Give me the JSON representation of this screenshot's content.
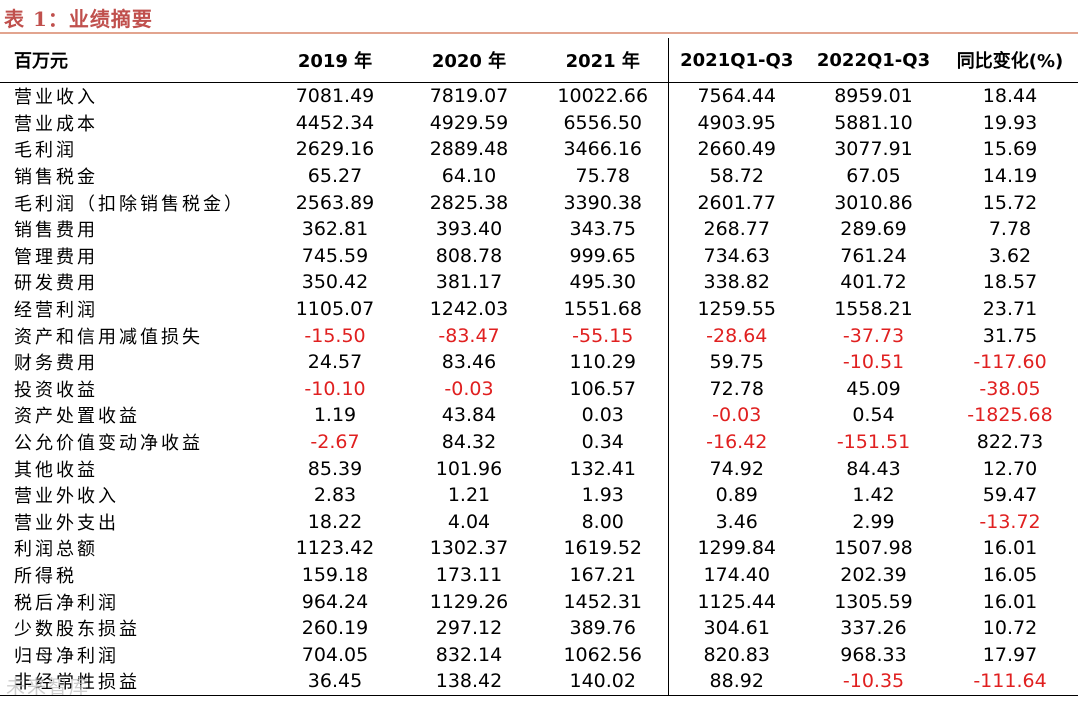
{
  "caption": "表 1：业绩摘要",
  "watermark": "未来智库",
  "colors": {
    "caption": "#c0504d",
    "negative": "#e02020"
  },
  "header": [
    "百万元",
    "2019 年",
    "2020 年",
    "2021 年",
    "2021Q1-Q3",
    "2022Q1-Q3",
    "同比变化(%)"
  ],
  "rows": [
    {
      "label": "营业收入",
      "values": [
        "7081.49",
        "7819.07",
        "10022.66",
        "7564.44",
        "8959.01",
        "18.44"
      ]
    },
    {
      "label": "营业成本",
      "values": [
        "4452.34",
        "4929.59",
        "6556.50",
        "4903.95",
        "5881.10",
        "19.93"
      ]
    },
    {
      "label": "毛利润",
      "values": [
        "2629.16",
        "2889.48",
        "3466.16",
        "2660.49",
        "3077.91",
        "15.69"
      ]
    },
    {
      "label": "销售税金",
      "values": [
        "65.27",
        "64.10",
        "75.78",
        "58.72",
        "67.05",
        "14.19"
      ]
    },
    {
      "label": "毛利润（扣除销售税金）",
      "values": [
        "2563.89",
        "2825.38",
        "3390.38",
        "2601.77",
        "3010.86",
        "15.72"
      ]
    },
    {
      "label": "销售费用",
      "values": [
        "362.81",
        "393.40",
        "343.75",
        "268.77",
        "289.69",
        "7.78"
      ]
    },
    {
      "label": "管理费用",
      "values": [
        "745.59",
        "808.78",
        "999.65",
        "734.63",
        "761.24",
        "3.62"
      ]
    },
    {
      "label": "研发费用",
      "values": [
        "350.42",
        "381.17",
        "495.30",
        "338.82",
        "401.72",
        "18.57"
      ]
    },
    {
      "label": "经营利润",
      "values": [
        "1105.07",
        "1242.03",
        "1551.68",
        "1259.55",
        "1558.21",
        "23.71"
      ]
    },
    {
      "label": "资产和信用减值损失",
      "values": [
        "-15.50",
        "-83.47",
        "-55.15",
        "-28.64",
        "-37.73",
        "31.75"
      ]
    },
    {
      "label": "财务费用",
      "values": [
        "24.57",
        "83.46",
        "110.29",
        "59.75",
        "-10.51",
        "-117.60"
      ]
    },
    {
      "label": "投资收益",
      "values": [
        "-10.10",
        "-0.03",
        "106.57",
        "72.78",
        "45.09",
        "-38.05"
      ]
    },
    {
      "label": "资产处置收益",
      "values": [
        "1.19",
        "43.84",
        "0.03",
        "-0.03",
        "0.54",
        "-1825.68"
      ]
    },
    {
      "label": "公允价值变动净收益",
      "values": [
        "-2.67",
        "84.32",
        "0.34",
        "-16.42",
        "-151.51",
        "822.73"
      ]
    },
    {
      "label": "其他收益",
      "values": [
        "85.39",
        "101.96",
        "132.41",
        "74.92",
        "84.43",
        "12.70"
      ]
    },
    {
      "label": "营业外收入",
      "values": [
        "2.83",
        "1.21",
        "1.93",
        "0.89",
        "1.42",
        "59.47"
      ]
    },
    {
      "label": "营业外支出",
      "values": [
        "18.22",
        "4.04",
        "8.00",
        "3.46",
        "2.99",
        "-13.72"
      ]
    },
    {
      "label": "利润总额",
      "values": [
        "1123.42",
        "1302.37",
        "1619.52",
        "1299.84",
        "1507.98",
        "16.01"
      ]
    },
    {
      "label": "所得税",
      "values": [
        "159.18",
        "173.11",
        "167.21",
        "174.40",
        "202.39",
        "16.05"
      ]
    },
    {
      "label": "税后净利润",
      "values": [
        "964.24",
        "1129.26",
        "1452.31",
        "1125.44",
        "1305.59",
        "16.01"
      ]
    },
    {
      "label": "少数股东损益",
      "values": [
        "260.19",
        "297.12",
        "389.76",
        "304.61",
        "337.26",
        "10.72"
      ]
    },
    {
      "label": "归母净利润",
      "values": [
        "704.05",
        "832.14",
        "1062.56",
        "820.83",
        "968.33",
        "17.97"
      ]
    },
    {
      "label": "非经常性损益",
      "values": [
        "36.45",
        "138.42",
        "140.02",
        "88.92",
        "-10.35",
        "-111.64"
      ]
    }
  ]
}
